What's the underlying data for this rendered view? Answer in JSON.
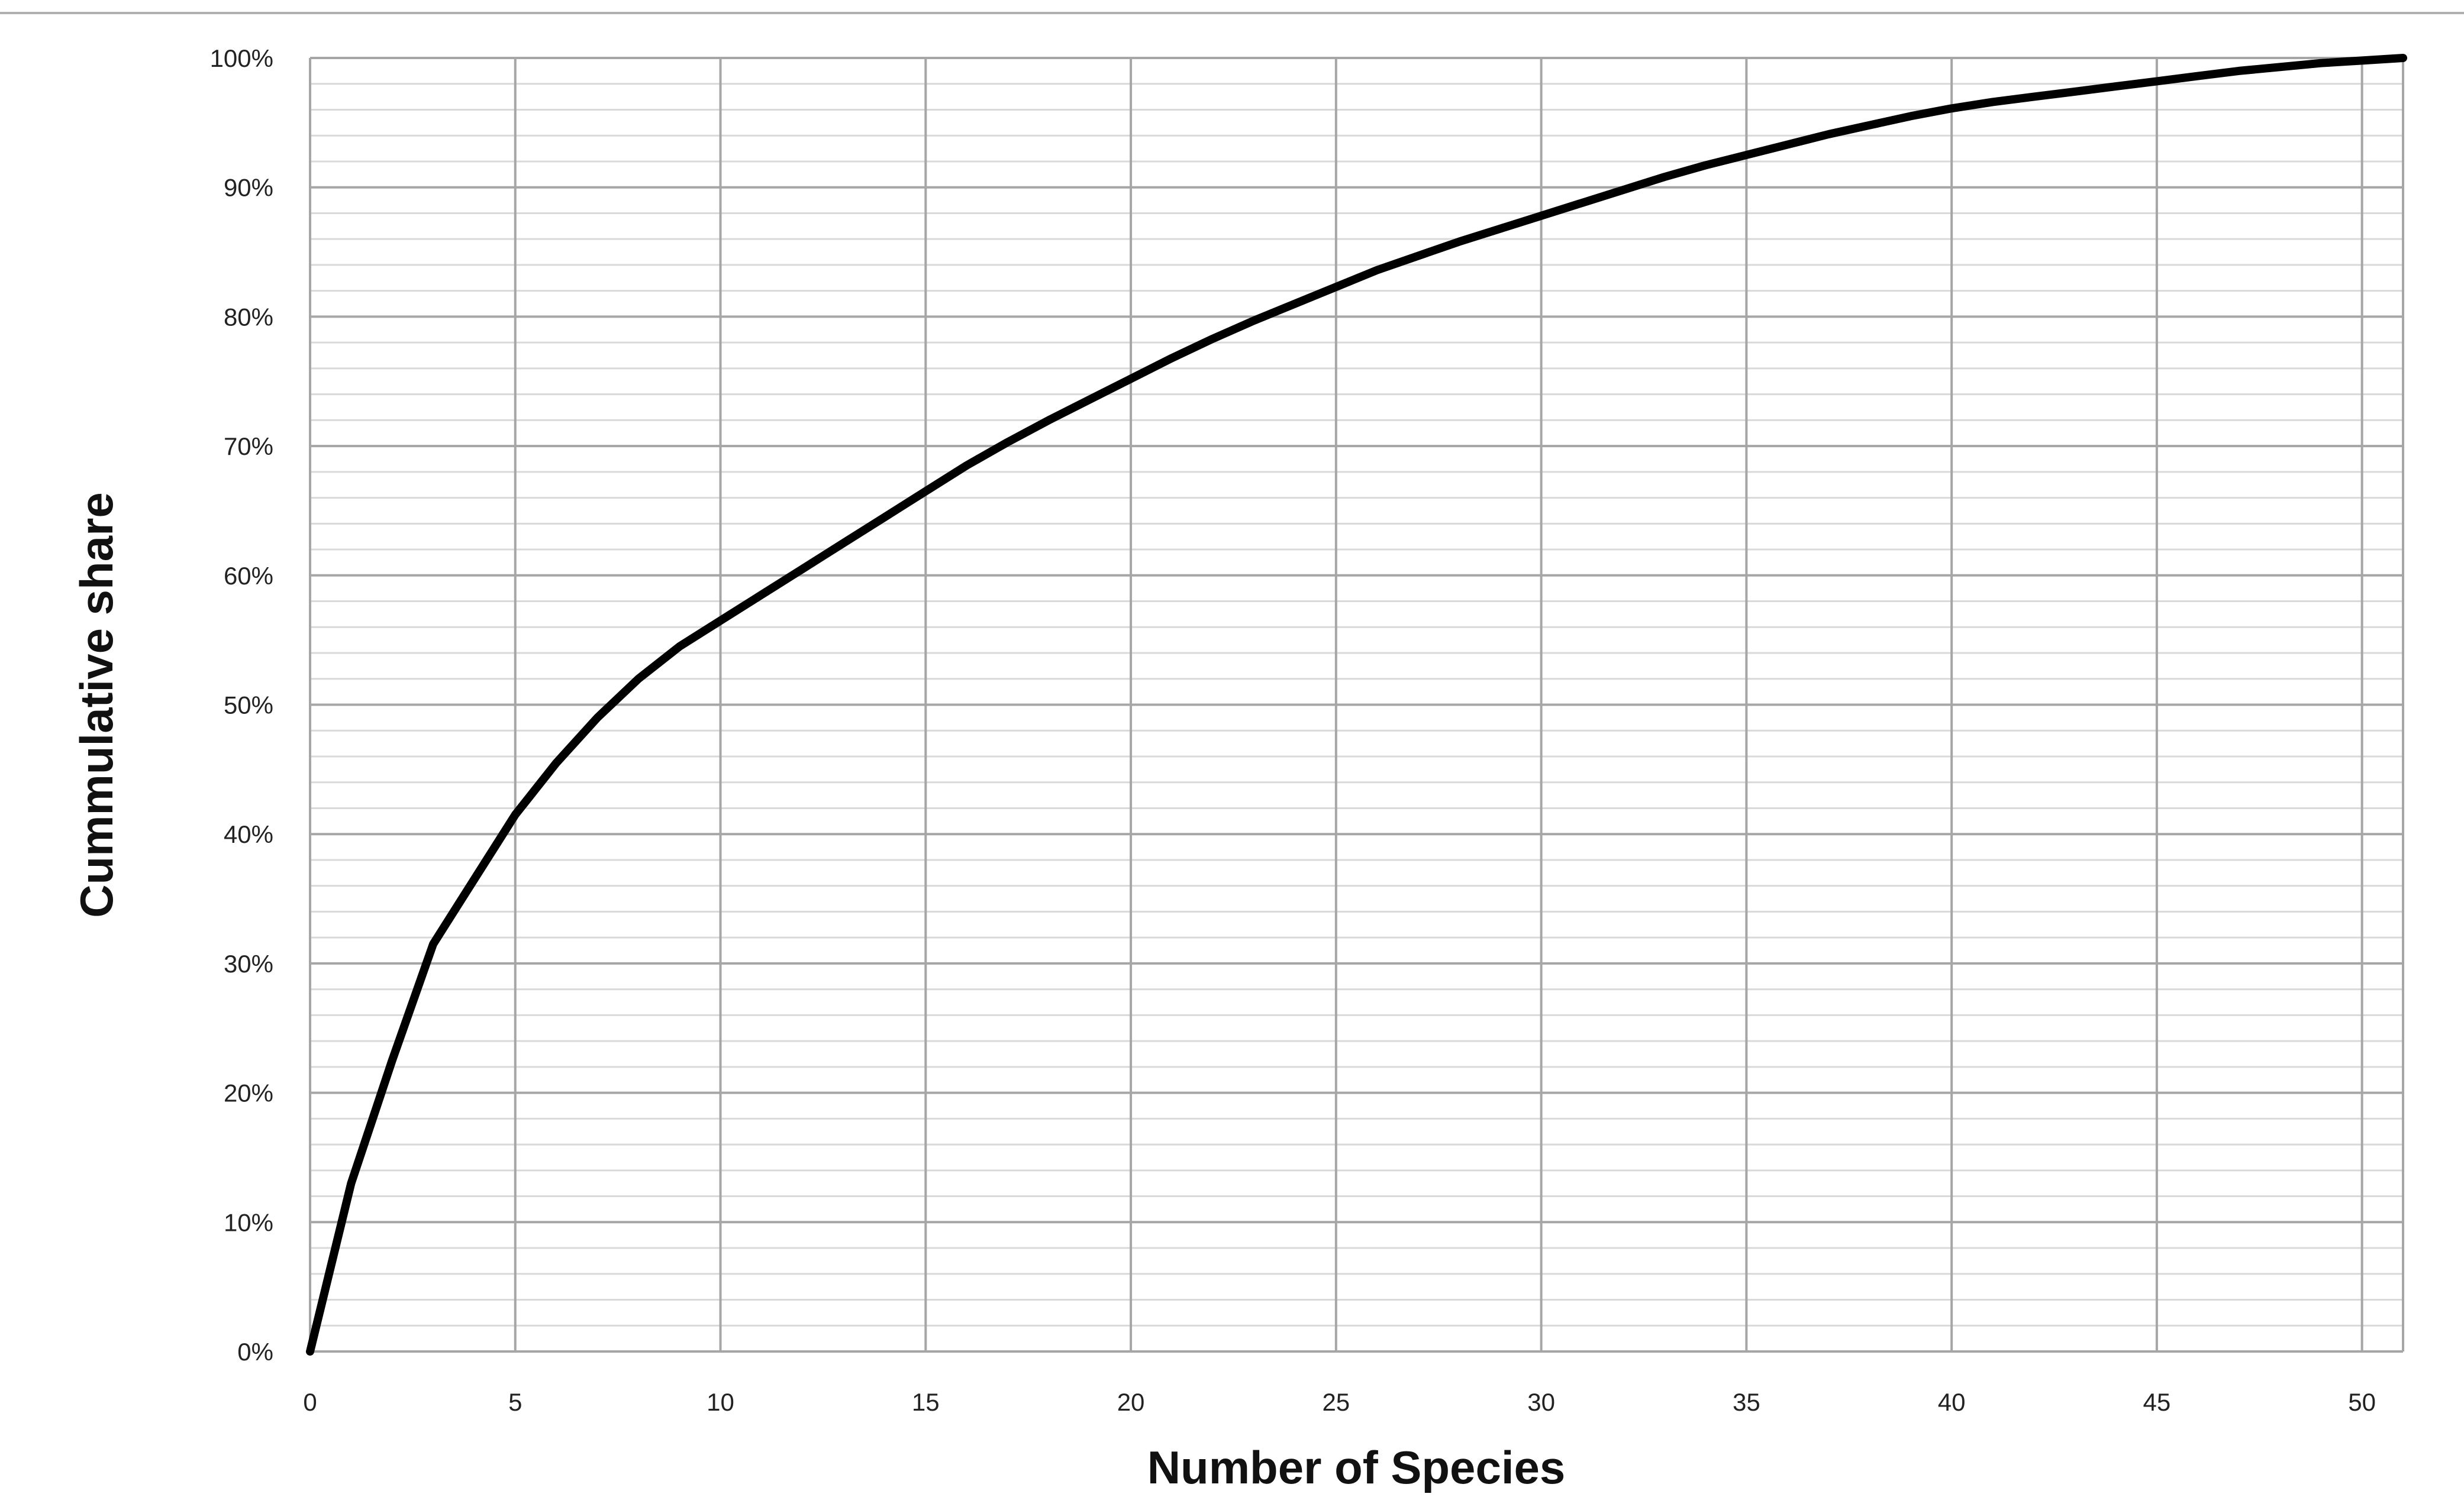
{
  "chart_data": {
    "type": "line",
    "title": "",
    "xlabel": "Number of Species",
    "ylabel": "Cummulative share",
    "xlim": [
      0,
      51
    ],
    "ylim": [
      0,
      100
    ],
    "x_ticks": [
      "0",
      "5",
      "10",
      "15",
      "20",
      "25",
      "30",
      "35",
      "40",
      "45",
      "50"
    ],
    "y_ticks": [
      "0%",
      "10%",
      "20%",
      "30%",
      "40%",
      "50%",
      "60%",
      "70%",
      "80%",
      "90%",
      "100%"
    ],
    "grid": true,
    "legend": "none",
    "series": [
      {
        "color": "#000000",
        "x": [
          0,
          1,
          2,
          3,
          4,
          5,
          6,
          7,
          8,
          9,
          10,
          11,
          12,
          13,
          14,
          15,
          16,
          17,
          18,
          19,
          20,
          21,
          22,
          23,
          24,
          25,
          26,
          27,
          28,
          29,
          30,
          31,
          32,
          33,
          34,
          35,
          36,
          37,
          38,
          39,
          40,
          41,
          42,
          43,
          44,
          45,
          46,
          47,
          48,
          49,
          50,
          51
        ],
        "y": [
          0,
          13,
          22.5,
          31.5,
          36.5,
          41.5,
          45.5,
          49,
          52,
          54.5,
          56.5,
          58.5,
          60.5,
          62.5,
          64.5,
          66.5,
          68.5,
          70.3,
          72,
          73.6,
          75.2,
          76.8,
          78.3,
          79.7,
          81,
          82.3,
          83.6,
          84.7,
          85.8,
          86.8,
          87.8,
          88.8,
          89.8,
          90.8,
          91.7,
          92.5,
          93.3,
          94.1,
          94.8,
          95.5,
          96.1,
          96.6,
          97,
          97.4,
          97.8,
          98.2,
          98.6,
          99,
          99.3,
          99.6,
          99.8,
          100
        ]
      }
    ]
  },
  "colors": {
    "major_grid": "#a6a6a6",
    "minor_grid": "#d9d9d9",
    "line": "#000000",
    "frame_top": "#b0b0b0"
  }
}
